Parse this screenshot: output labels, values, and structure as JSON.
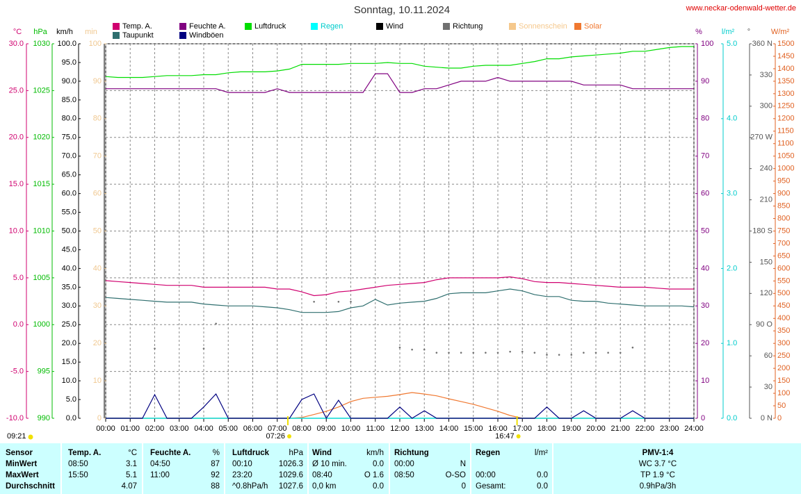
{
  "chart_data": {
    "type": "line",
    "title": "Sonntag, 10.11.2024",
    "source": "www.neckar-odenwald-wetter.de",
    "xlim": [
      0,
      24
    ],
    "xticks": [
      {
        "value": 0,
        "label": "00:00"
      },
      {
        "value": 1,
        "label": "01:00"
      },
      {
        "value": 2,
        "label": "02:00"
      },
      {
        "value": 3,
        "label": "03:00"
      },
      {
        "value": 4,
        "label": "04:00"
      },
      {
        "value": 5,
        "label": "05:00"
      },
      {
        "value": 6,
        "label": "06:00"
      },
      {
        "value": 7,
        "label": "07:00"
      },
      {
        "value": 8,
        "label": "08:00"
      },
      {
        "value": 9,
        "label": "09:00"
      },
      {
        "value": 10,
        "label": "10:00"
      },
      {
        "value": 11,
        "label": "11:00"
      },
      {
        "value": 12,
        "label": "12:00"
      },
      {
        "value": 13,
        "label": "13:00"
      },
      {
        "value": 14,
        "label": "14:00"
      },
      {
        "value": 15,
        "label": "15:00"
      },
      {
        "value": 16,
        "label": "16:00"
      },
      {
        "value": 17,
        "label": "17:00"
      },
      {
        "value": 18,
        "label": "18:00"
      },
      {
        "value": 19,
        "label": "19:00"
      },
      {
        "value": 20,
        "label": "20:00"
      },
      {
        "value": 21,
        "label": "21:00"
      },
      {
        "value": 22,
        "label": "22:00"
      },
      {
        "value": 23,
        "label": "23:00"
      },
      {
        "value": 24,
        "label": "24:00"
      }
    ],
    "grid": true,
    "axes": [
      {
        "unit": "°C",
        "color": "#d0006f",
        "lim": [
          -10,
          30
        ],
        "grid": true,
        "ticks": [
          {
            "value": 30,
            "label": "30.0"
          },
          {
            "value": 25,
            "label": "25.0"
          },
          {
            "value": 20,
            "label": "20.0"
          },
          {
            "value": 15,
            "label": "15.0"
          },
          {
            "value": 10,
            "label": "10.0"
          },
          {
            "value": 5,
            "label": "5.0"
          },
          {
            "value": 0,
            "label": "0.0"
          },
          {
            "value": -5,
            "label": "-5.0"
          },
          {
            "value": -10,
            "label": "-10.0"
          }
        ]
      },
      {
        "unit": "hPa",
        "color": "#00bb00",
        "lim": [
          990,
          1030
        ],
        "ticks": [
          1030,
          1025,
          1020,
          1015,
          1010,
          1005,
          1000,
          995,
          990
        ]
      },
      {
        "unit": "km/h",
        "color": "#000000",
        "lim": [
          0,
          100
        ],
        "ticks": [
          {
            "value": 100,
            "label": "100.0"
          },
          {
            "value": 95,
            "label": "95.0"
          },
          {
            "value": 90,
            "label": "90.0"
          },
          {
            "value": 85,
            "label": "85.0"
          },
          {
            "value": 80,
            "label": "80.0"
          },
          {
            "value": 75,
            "label": "75.0"
          },
          {
            "value": 70,
            "label": "70.0"
          },
          {
            "value": 65,
            "label": "65.0"
          },
          {
            "value": 60,
            "label": "60.0"
          },
          {
            "value": 55,
            "label": "55.0"
          },
          {
            "value": 50,
            "label": "50.0"
          },
          {
            "value": 45,
            "label": "45.0"
          },
          {
            "value": 40,
            "label": "40.0"
          },
          {
            "value": 35,
            "label": "35.0"
          },
          {
            "value": 30,
            "label": "30.0"
          },
          {
            "value": 25,
            "label": "25.0"
          },
          {
            "value": 20,
            "label": "20.0"
          },
          {
            "value": 15,
            "label": "15.0"
          },
          {
            "value": 10,
            "label": "10.0"
          },
          {
            "value": 5,
            "label": "5.0"
          },
          {
            "value": 0,
            "label": "0.0"
          }
        ]
      },
      {
        "unit": "min",
        "color": "#f0c890",
        "lim": [
          0,
          100
        ],
        "ticks": [
          100,
          90,
          80,
          70,
          60,
          50,
          40,
          30,
          20,
          10,
          0
        ]
      },
      {
        "unit": "%",
        "color": "#800080",
        "lim": [
          0,
          100
        ],
        "ticks": [
          100,
          90,
          80,
          70,
          60,
          50,
          40,
          30,
          20,
          10,
          0
        ]
      },
      {
        "unit": "l/m²",
        "color": "#00cccc",
        "lim": [
          0,
          5
        ],
        "ticks": [
          {
            "value": 5,
            "label": "5.0"
          },
          {
            "value": 4,
            "label": "4.0"
          },
          {
            "value": 3,
            "label": "3.0"
          },
          {
            "value": 2,
            "label": "2.0"
          },
          {
            "value": 1,
            "label": "1.0"
          },
          {
            "value": 0,
            "label": "0.0"
          }
        ]
      },
      {
        "unit": "°",
        "color": "#555555",
        "lim": [
          0,
          360
        ],
        "ticks": [
          {
            "value": 360,
            "label": "360 N"
          },
          330,
          300,
          {
            "value": 270,
            "label": "270 W"
          },
          240,
          210,
          {
            "value": 180,
            "label": "180 S"
          },
          150,
          120,
          {
            "value": 90,
            "label": "90 O"
          },
          60,
          30,
          {
            "value": 0,
            "label": "0 N"
          }
        ]
      },
      {
        "unit": "W/m²",
        "color": "#e06020",
        "lim": [
          0,
          1500
        ],
        "ticks": [
          1500,
          1450,
          1400,
          1350,
          1300,
          1250,
          1200,
          1150,
          1100,
          1050,
          1000,
          950,
          900,
          850,
          800,
          750,
          700,
          650,
          600,
          550,
          500,
          450,
          400,
          350,
          300,
          250,
          200,
          150,
          100,
          50,
          0
        ]
      }
    ],
    "x": [
      0,
      0.5,
      1,
      1.5,
      2,
      2.5,
      3,
      3.5,
      4,
      4.5,
      5,
      5.5,
      6,
      6.5,
      7,
      7.5,
      8,
      8.5,
      9,
      9.5,
      10,
      10.5,
      11,
      11.5,
      12,
      12.5,
      13,
      13.5,
      14,
      14.5,
      15,
      15.5,
      16,
      16.5,
      17,
      17.5,
      18,
      18.5,
      19,
      19.5,
      20,
      20.5,
      21,
      21.5,
      22,
      22.5,
      23,
      23.5,
      24
    ],
    "series": [
      {
        "name": "Temp. A.",
        "color": "#d0006f",
        "axis": 0,
        "values": [
          4.7,
          4.6,
          4.5,
          4.4,
          4.3,
          4.2,
          4.2,
          4.2,
          4.0,
          4.0,
          4.0,
          4.0,
          4.0,
          4.0,
          3.8,
          3.8,
          3.5,
          3.1,
          3.2,
          3.5,
          3.6,
          3.8,
          4.0,
          4.2,
          4.3,
          4.4,
          4.5,
          4.8,
          5.0,
          5.0,
          5.0,
          5.0,
          5.0,
          5.1,
          4.9,
          4.6,
          4.5,
          4.5,
          4.4,
          4.3,
          4.2,
          4.1,
          4.0,
          4.0,
          4.0,
          3.9,
          3.8,
          3.8,
          3.8
        ]
      },
      {
        "name": "Taupunkt",
        "color": "#2f6f6f",
        "axis": 0,
        "values": [
          2.9,
          2.8,
          2.7,
          2.6,
          2.5,
          2.4,
          2.4,
          2.4,
          2.2,
          2.1,
          2.0,
          2.0,
          2.0,
          1.9,
          1.8,
          1.6,
          1.3,
          1.3,
          1.3,
          1.4,
          1.8,
          2.0,
          2.7,
          2.1,
          2.3,
          2.4,
          2.5,
          2.8,
          3.3,
          3.4,
          3.4,
          3.4,
          3.6,
          3.8,
          3.6,
          3.2,
          3.0,
          3.0,
          2.6,
          2.5,
          2.5,
          2.3,
          2.2,
          2.1,
          2.0,
          2.0,
          2.0,
          2.0,
          1.9
        ]
      },
      {
        "name": "Feuchte A.",
        "color": "#800080",
        "axis": 4,
        "values": [
          88,
          88,
          88,
          88,
          88,
          88,
          88,
          88,
          88,
          88,
          87,
          87,
          87,
          87,
          88,
          87,
          87,
          87,
          87,
          87,
          87,
          87,
          92,
          92,
          87,
          87,
          88,
          88,
          89,
          90,
          90,
          90,
          91,
          90,
          90,
          90,
          90,
          90,
          90,
          89,
          89,
          89,
          89,
          88,
          88,
          88,
          88,
          88,
          88
        ]
      },
      {
        "name": "Windböen",
        "color": "#000080",
        "axis": 2,
        "values": [
          0,
          0,
          0,
          0,
          6.3,
          0,
          0,
          0,
          3,
          6.5,
          0,
          0,
          0,
          0,
          0,
          0,
          5,
          6.5,
          0,
          4.8,
          0,
          0,
          0,
          0,
          3,
          0,
          2,
          0,
          0,
          0,
          0,
          0,
          0,
          0,
          0,
          0,
          3,
          0,
          0,
          2,
          0,
          0,
          0,
          2,
          0,
          0,
          0,
          0,
          0
        ]
      },
      {
        "name": "Luftdruck",
        "color": "#00dd00",
        "axis": 1,
        "values": [
          1026.5,
          1026.4,
          1026.4,
          1026.4,
          1026.5,
          1026.6,
          1026.6,
          1026.6,
          1026.7,
          1026.7,
          1026.9,
          1027.0,
          1027.0,
          1027.0,
          1027.1,
          1027.3,
          1027.8,
          1027.8,
          1027.8,
          1027.8,
          1027.9,
          1027.9,
          1027.9,
          1028.0,
          1027.9,
          1027.9,
          1027.6,
          1027.5,
          1027.4,
          1027.4,
          1027.6,
          1027.7,
          1027.7,
          1027.7,
          1027.9,
          1028.1,
          1028.4,
          1028.4,
          1028.6,
          1028.7,
          1028.8,
          1028.9,
          1029.0,
          1029.2,
          1029.2,
          1029.4,
          1029.6,
          1029.7,
          1029.7
        ]
      },
      {
        "name": "Regen",
        "color": "#00ffff",
        "label_color": "#00cccc",
        "axis": 5,
        "values": [
          0,
          0,
          0,
          0,
          0,
          0,
          0,
          0,
          0,
          0,
          0,
          0,
          0,
          0,
          0,
          0,
          0,
          0,
          0,
          0,
          0,
          0,
          0,
          0,
          0,
          0,
          0,
          0,
          0,
          0,
          0,
          0,
          0,
          0,
          0,
          0,
          0,
          0,
          0,
          0,
          0,
          0,
          0,
          0,
          0,
          0,
          0,
          0,
          0
        ]
      },
      {
        "name": "Wind",
        "color": "#000000",
        "axis": 2,
        "values": [
          0,
          0,
          0,
          0,
          0,
          0,
          0,
          0,
          0,
          0,
          0,
          0,
          0,
          0,
          0,
          0,
          0,
          0,
          0,
          0,
          0,
          0,
          0,
          0,
          0,
          0,
          0,
          0,
          0,
          0,
          0,
          0,
          0,
          0,
          0,
          0,
          0,
          0,
          0,
          0,
          0,
          0,
          0,
          0,
          0,
          0,
          0,
          0,
          0
        ]
      },
      {
        "name": "Richtung",
        "color": "#707070",
        "axis": 6,
        "style": "dots",
        "values": [
          null,
          null,
          null,
          null,
          67,
          null,
          null,
          null,
          67,
          91,
          null,
          null,
          null,
          null,
          null,
          null,
          null,
          112,
          null,
          112,
          112,
          null,
          null,
          null,
          68,
          66,
          66,
          63,
          63,
          63,
          63,
          63,
          63,
          64,
          64,
          63,
          61,
          61,
          61,
          63,
          63,
          63,
          63,
          68,
          null,
          null,
          null,
          null,
          null
        ]
      },
      {
        "name": "Sonnenschein",
        "color": "#f5c88c",
        "label_color": "#f5c88c",
        "axis": 3,
        "values": [
          0,
          0,
          0,
          0,
          0,
          0,
          0,
          0,
          0,
          0,
          0,
          0,
          0,
          0,
          0,
          0,
          0,
          0,
          0,
          0,
          0,
          0,
          0,
          0,
          0,
          0,
          0,
          0,
          0,
          0,
          0,
          0,
          0,
          0,
          0,
          0,
          0,
          0,
          0,
          0,
          0,
          0,
          0,
          0,
          0,
          0,
          0,
          0,
          0
        ]
      },
      {
        "name": "Solar",
        "color": "#f07830",
        "label_color": "#f07830",
        "axis": 7,
        "values": [
          0,
          0,
          0,
          0,
          0,
          0,
          0,
          0,
          0,
          0,
          0,
          0,
          0,
          0,
          0,
          0,
          3,
          15,
          28,
          45,
          67,
          80,
          84,
          88,
          95,
          103,
          97,
          90,
          78,
          67,
          56,
          42,
          28,
          11,
          0,
          0,
          0,
          0,
          0,
          0,
          0,
          0,
          0,
          0,
          0,
          0,
          0,
          0,
          0
        ]
      }
    ],
    "annotations": {
      "sunrise": "07:26",
      "sunset": "16:47",
      "sun_duration": "09:21"
    }
  },
  "table": {
    "header": [
      "Sensor",
      "Temp. A.",
      "°C",
      "Feuchte A.",
      "%",
      "Luftdruck",
      "hPa",
      "Wind",
      "km/h",
      "Richtung",
      null,
      "Regen",
      "l/m²",
      "PMV-1:4"
    ],
    "rows": [
      [
        "MinWert",
        "08:50",
        "3.1",
        "04:50",
        "87",
        "00:10",
        "1026.3",
        "Ø 10 min.",
        "0.0",
        "00:00",
        "N",
        null,
        null,
        "WC 3.7 °C"
      ],
      [
        "MaxWert",
        "15:50",
        "5.1",
        "11:00",
        "92",
        "23:20",
        "1029.6",
        "08:40",
        "O 1.6",
        "08:50",
        "O-SO",
        "00:00",
        "0.0",
        "TP 1.9 °C"
      ],
      [
        "Durchschnitt",
        null,
        "4.07",
        null,
        "88",
        "^0.8hPa/h",
        "1027.6",
        "0,0 km",
        "0.0",
        null,
        "0",
        "Gesamt:",
        "0.0",
        "0.9hPa/3h"
      ]
    ]
  }
}
